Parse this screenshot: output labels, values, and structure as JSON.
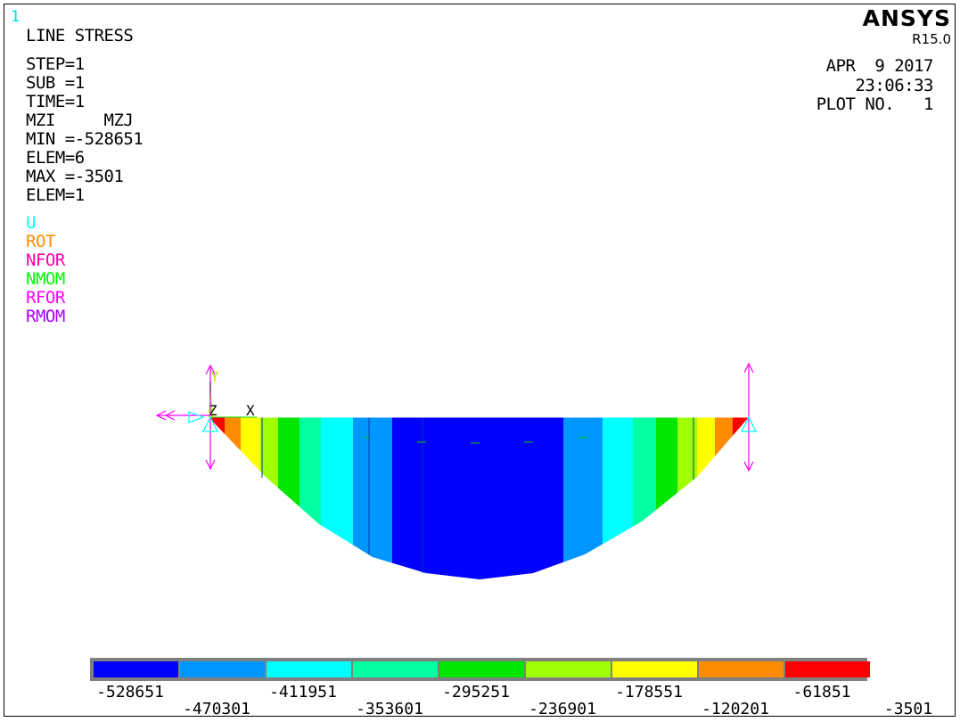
{
  "window_number": "1",
  "plot_title": "LINE STRESS",
  "info_lines": [
    "STEP=1",
    "SUB =1",
    "TIME=1",
    "MZI     MZJ",
    "MIN =-528651",
    "ELEM=6",
    "MAX =-3501",
    "ELEM=1"
  ],
  "symbol_legend": [
    {
      "label": "U",
      "color": "#00ffff"
    },
    {
      "label": "ROT",
      "color": "#ff8c00"
    },
    {
      "label": "NFOR",
      "color": "#ff00aa"
    },
    {
      "label": "NMOM",
      "color": "#00ff00"
    },
    {
      "label": "RFOR",
      "color": "#ff00ff"
    },
    {
      "label": "RMOM",
      "color": "#aa00ff"
    }
  ],
  "brand": "ANSYS",
  "version": "R15.0",
  "date": "APR  9 2017",
  "time": "23:06:33",
  "plot_no": "PLOT NO.   1",
  "axis_labels": {
    "y": "Y",
    "z": "Z",
    "x": "X"
  },
  "contour_colors": [
    "#0000ff",
    "#0096ff",
    "#00ffff",
    "#00ffa0",
    "#00e600",
    "#a0ff00",
    "#ffff00",
    "#ff8c00",
    "#ff0000"
  ],
  "legend_values_top": [
    "-528651",
    "-411951",
    "-295251",
    "-178551",
    "-61851"
  ],
  "legend_values_bottom": [
    "-470301",
    "-353601",
    "-236901",
    "-120201",
    "-3501"
  ],
  "colors": {
    "frame": "#000000",
    "text": "#000000",
    "window_number": "#00ffff",
    "constraint": "#00ffff",
    "force": "#ff00ff"
  }
}
